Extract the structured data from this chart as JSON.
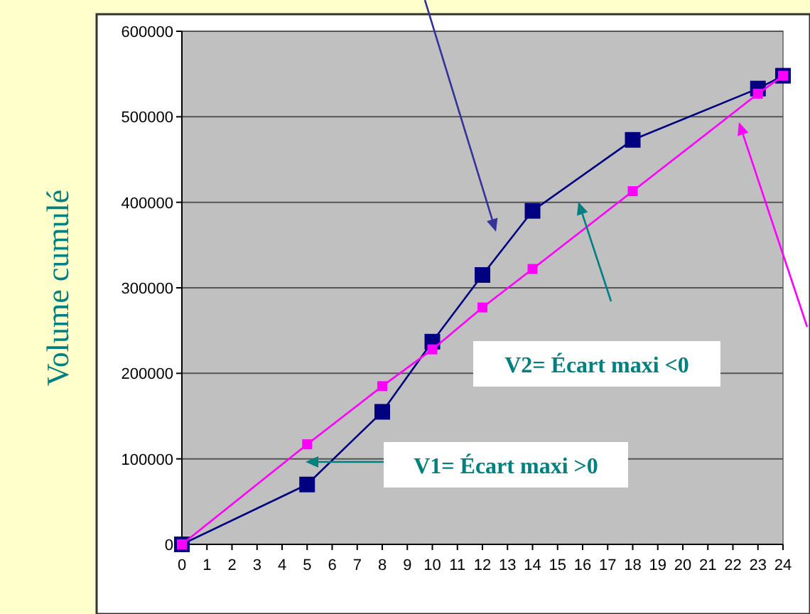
{
  "chart_data": {
    "type": "line",
    "ylabel": "Volume cumulé",
    "xlim": [
      0,
      24
    ],
    "xticks": [
      0,
      1,
      2,
      3,
      4,
      5,
      6,
      7,
      8,
      9,
      10,
      11,
      12,
      13,
      14,
      15,
      16,
      17,
      18,
      19,
      20,
      21,
      22,
      23,
      24
    ],
    "ylim": [
      0,
      600000
    ],
    "yticks": [
      0,
      100000,
      200000,
      300000,
      400000,
      500000,
      600000
    ],
    "grid": "y",
    "marker": "square",
    "line_style": "solid",
    "series": [
      {
        "color": "#000080",
        "x": [
          0,
          5,
          8,
          10,
          12,
          14,
          18,
          23,
          24
        ],
        "values": [
          0,
          70000,
          155000,
          237000,
          315000,
          390000,
          473000,
          533000,
          548000
        ]
      },
      {
        "color": "#ff00ff",
        "x": [
          0,
          5,
          8,
          10,
          12,
          14,
          18,
          23,
          24
        ],
        "values": [
          0,
          117000,
          185000,
          228000,
          277000,
          322000,
          413000,
          527000,
          548000
        ]
      }
    ],
    "annotations": [
      "V2= Écart maxi <0",
      "V1= Écart maxi >0"
    ]
  }
}
